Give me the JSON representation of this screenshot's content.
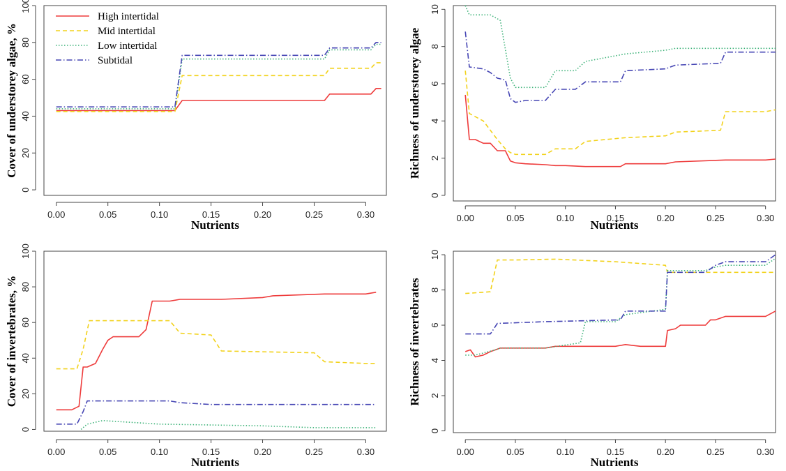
{
  "colors": {
    "High intertidal": "#ee3b3b",
    "Mid intertidal": "#f2d21b",
    "Low intertidal": "#3fb37a",
    "Subtidal": "#4646b4",
    "frame": "#444444"
  },
  "legend": {
    "placement": "top-left of top-left panel",
    "entries": [
      "High intertidal",
      "Mid intertidal",
      "Low intertidal",
      "Subtidal"
    ]
  },
  "chart_data": [
    {
      "type": "line",
      "panel": "top-left",
      "xlabel": "Nutrients",
      "ylabel": "Cover of understorey algae, %",
      "xlim": [
        -0.012,
        0.32
      ],
      "ylim": [
        -3,
        100
      ],
      "xticks": [
        "0.00",
        "0.05",
        "0.10",
        "0.15",
        "0.20",
        "0.25",
        "0.30"
      ],
      "yticks": [
        "0",
        "20",
        "40",
        "60",
        "80",
        "100"
      ],
      "grid": false,
      "series": [
        {
          "name": "High intertidal",
          "style": "solid",
          "x": [
            0,
            0.115,
            0.122,
            0.26,
            0.265,
            0.305,
            0.31,
            0.315
          ],
          "y": [
            43,
            43,
            48.5,
            48.5,
            52,
            52,
            55,
            55
          ]
        },
        {
          "name": "Mid intertidal",
          "style": "dashed",
          "x": [
            0,
            0.115,
            0.122,
            0.26,
            0.265,
            0.305,
            0.31,
            0.315
          ],
          "y": [
            42.5,
            42.5,
            62,
            62,
            66,
            66,
            69,
            69
          ]
        },
        {
          "name": "Low intertidal",
          "style": "dotted",
          "x": [
            0,
            0.115,
            0.122,
            0.26,
            0.265,
            0.305,
            0.31,
            0.315
          ],
          "y": [
            44,
            44,
            71,
            71,
            76,
            76,
            79,
            79
          ]
        },
        {
          "name": "Subtidal",
          "style": "dotdash",
          "x": [
            0,
            0.115,
            0.122,
            0.26,
            0.265,
            0.305,
            0.31,
            0.315
          ],
          "y": [
            45,
            45,
            73,
            73,
            77,
            77,
            80,
            80
          ]
        }
      ]
    },
    {
      "type": "line",
      "panel": "top-right",
      "xlabel": "Nutrients",
      "ylabel": "Richness of understorey algae",
      "xlim": [
        -0.012,
        0.31
      ],
      "ylim": [
        -0.3,
        10.2
      ],
      "xticks": [
        "0.00",
        "0.05",
        "0.10",
        "0.15",
        "0.20",
        "0.25",
        "0.30"
      ],
      "yticks": [
        "0",
        "2",
        "4",
        "6",
        "8",
        "10"
      ],
      "grid": false,
      "series": [
        {
          "name": "High intertidal",
          "style": "solid",
          "x": [
            0,
            0.004,
            0.01,
            0.018,
            0.025,
            0.032,
            0.04,
            0.045,
            0.05,
            0.06,
            0.08,
            0.09,
            0.1,
            0.12,
            0.14,
            0.155,
            0.16,
            0.2,
            0.21,
            0.26,
            0.3,
            0.31
          ],
          "y": [
            5.4,
            3.0,
            3.0,
            2.8,
            2.8,
            2.4,
            2.4,
            1.85,
            1.75,
            1.7,
            1.65,
            1.6,
            1.6,
            1.55,
            1.55,
            1.55,
            1.7,
            1.7,
            1.8,
            1.9,
            1.9,
            1.95
          ]
        },
        {
          "name": "Mid intertidal",
          "style": "dashed",
          "x": [
            0,
            0.004,
            0.018,
            0.025,
            0.032,
            0.04,
            0.045,
            0.05,
            0.08,
            0.09,
            0.11,
            0.12,
            0.16,
            0.2,
            0.21,
            0.255,
            0.26,
            0.3,
            0.31
          ],
          "y": [
            6.7,
            4.4,
            4.0,
            3.5,
            3.0,
            2.5,
            2.3,
            2.2,
            2.2,
            2.5,
            2.5,
            2.9,
            3.1,
            3.2,
            3.4,
            3.5,
            4.5,
            4.5,
            4.6
          ]
        },
        {
          "name": "Low intertidal",
          "style": "dotted",
          "x": [
            0,
            0.004,
            0.025,
            0.035,
            0.045,
            0.05,
            0.08,
            0.09,
            0.11,
            0.12,
            0.16,
            0.2,
            0.21,
            0.26,
            0.3,
            0.31
          ],
          "y": [
            10.2,
            9.7,
            9.7,
            9.4,
            6.3,
            5.8,
            5.8,
            6.7,
            6.7,
            7.2,
            7.6,
            7.8,
            7.9,
            7.9,
            7.9,
            7.9
          ]
        },
        {
          "name": "Subtidal",
          "style": "dotdash",
          "x": [
            0,
            0.004,
            0.018,
            0.025,
            0.032,
            0.04,
            0.045,
            0.05,
            0.06,
            0.08,
            0.09,
            0.11,
            0.12,
            0.155,
            0.16,
            0.2,
            0.21,
            0.255,
            0.26,
            0.3,
            0.31
          ],
          "y": [
            8.8,
            6.9,
            6.8,
            6.6,
            6.3,
            6.2,
            5.2,
            5.0,
            5.1,
            5.1,
            5.7,
            5.7,
            6.1,
            6.1,
            6.7,
            6.8,
            7.0,
            7.1,
            7.7,
            7.7,
            7.7
          ]
        }
      ]
    },
    {
      "type": "line",
      "panel": "bottom-left",
      "xlabel": "Nutrients",
      "ylabel": "Cover of invertebrates, %",
      "xlim": [
        -0.012,
        0.32
      ],
      "ylim": [
        -1,
        100
      ],
      "xticks": [
        "0.00",
        "0.05",
        "0.10",
        "0.15",
        "0.20",
        "0.25",
        "0.30"
      ],
      "yticks": [
        "0",
        "20",
        "40",
        "60",
        "80",
        "100"
      ],
      "grid": false,
      "series": [
        {
          "name": "High intertidal",
          "style": "solid",
          "x": [
            0,
            0.015,
            0.022,
            0.026,
            0.03,
            0.038,
            0.045,
            0.05,
            0.055,
            0.06,
            0.08,
            0.087,
            0.093,
            0.1,
            0.11,
            0.12,
            0.16,
            0.2,
            0.21,
            0.26,
            0.3,
            0.31
          ],
          "y": [
            11,
            11,
            13,
            35,
            35,
            37,
            45,
            50,
            52,
            52,
            52,
            56,
            72,
            72,
            72,
            73,
            73,
            74,
            75,
            76,
            76,
            77
          ]
        },
        {
          "name": "Mid intertidal",
          "style": "dashed",
          "x": [
            0,
            0.02,
            0.026,
            0.032,
            0.05,
            0.11,
            0.12,
            0.15,
            0.16,
            0.25,
            0.26,
            0.3,
            0.31
          ],
          "y": [
            34,
            34,
            45,
            61,
            61,
            61,
            54,
            53,
            44,
            43,
            38,
            37,
            37
          ]
        },
        {
          "name": "Low intertidal",
          "style": "dotted",
          "x": [
            0.024,
            0.03,
            0.045,
            0.1,
            0.2,
            0.25,
            0.31
          ],
          "y": [
            0,
            3,
            5,
            3,
            2,
            1,
            1
          ]
        },
        {
          "name": "Subtidal",
          "style": "dotdash",
          "x": [
            0,
            0.02,
            0.026,
            0.03,
            0.11,
            0.12,
            0.15,
            0.31
          ],
          "y": [
            3,
            3,
            10,
            16,
            16,
            15,
            14,
            14
          ]
        }
      ]
    },
    {
      "type": "line",
      "panel": "bottom-right",
      "xlabel": "Nutrients",
      "ylabel": "Richness of invertebrates",
      "xlim": [
        -0.012,
        0.31
      ],
      "ylim": [
        -0.1,
        10.2
      ],
      "xticks": [
        "0.00",
        "0.05",
        "0.10",
        "0.15",
        "0.20",
        "0.25",
        "0.30"
      ],
      "yticks": [
        "0",
        "2",
        "4",
        "6",
        "8",
        "10"
      ],
      "grid": false,
      "series": [
        {
          "name": "High intertidal",
          "style": "solid",
          "x": [
            0,
            0.005,
            0.01,
            0.018,
            0.025,
            0.03,
            0.035,
            0.08,
            0.09,
            0.15,
            0.16,
            0.175,
            0.2,
            0.202,
            0.21,
            0.215,
            0.24,
            0.245,
            0.25,
            0.26,
            0.3,
            0.31
          ],
          "y": [
            4.5,
            4.6,
            4.2,
            4.3,
            4.5,
            4.6,
            4.7,
            4.7,
            4.8,
            4.8,
            4.9,
            4.8,
            4.8,
            5.7,
            5.8,
            6.0,
            6.0,
            6.3,
            6.3,
            6.5,
            6.5,
            6.8
          ]
        },
        {
          "name": "Mid intertidal",
          "style": "dashed",
          "x": [
            0,
            0.025,
            0.032,
            0.05,
            0.09,
            0.15,
            0.2,
            0.202,
            0.25,
            0.31
          ],
          "y": [
            7.8,
            7.9,
            9.7,
            9.7,
            9.75,
            9.6,
            9.4,
            9.0,
            9.0,
            9.0
          ]
        },
        {
          "name": "Low intertidal",
          "style": "dotted",
          "x": [
            0,
            0.01,
            0.03,
            0.035,
            0.08,
            0.115,
            0.12,
            0.15,
            0.16,
            0.2,
            0.202,
            0.24,
            0.25,
            0.26,
            0.3,
            0.31
          ],
          "y": [
            4.3,
            4.3,
            4.6,
            4.7,
            4.7,
            5.0,
            6.2,
            6.2,
            6.6,
            6.9,
            9.1,
            9.1,
            9.3,
            9.4,
            9.4,
            9.8
          ]
        },
        {
          "name": "Subtidal",
          "style": "dotdash",
          "x": [
            0,
            0.025,
            0.032,
            0.08,
            0.155,
            0.16,
            0.2,
            0.202,
            0.24,
            0.25,
            0.26,
            0.3,
            0.31
          ],
          "y": [
            5.5,
            5.5,
            6.1,
            6.2,
            6.3,
            6.8,
            6.8,
            9.0,
            9.0,
            9.4,
            9.6,
            9.6,
            10.0
          ]
        }
      ]
    }
  ]
}
